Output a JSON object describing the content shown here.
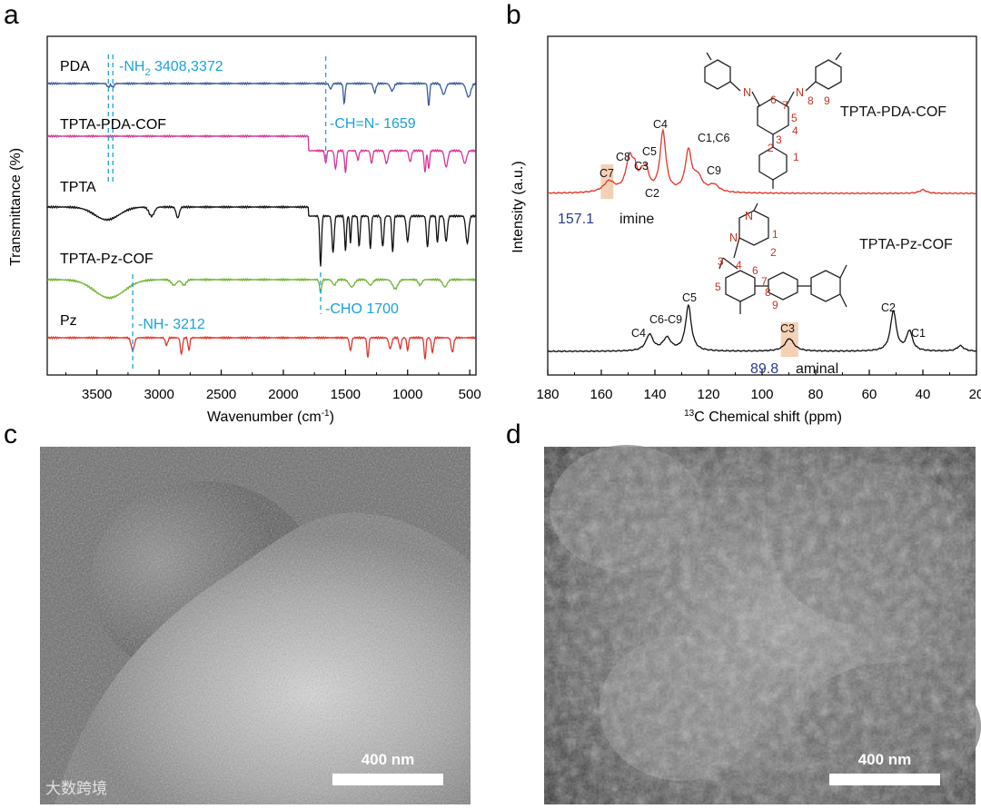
{
  "panels": {
    "a": "a",
    "b": "b",
    "c": "c",
    "d": "d"
  },
  "chart_data": [
    {
      "type": "line",
      "panel": "a",
      "xlabel": "Wavenumber (cm",
      "xlabel_sup": "-1",
      "xlabel_end": ")",
      "ylabel": "Transmittance (%)",
      "xlim": [
        3900,
        450
      ],
      "x_reversed": true,
      "xticks": [
        3500,
        3000,
        2500,
        2000,
        1500,
        1000,
        500
      ],
      "xtick_labels": [
        "3500",
        "3000",
        "2500",
        "2000",
        "1500",
        "1000",
        "500"
      ],
      "series": [
        {
          "name": "PDA",
          "color": "#3b5aa0",
          "offset": 92,
          "peaks": [
            [
              3408,
              4,
              14
            ],
            [
              3372,
              4,
              14
            ],
            [
              1620,
              6,
              14
            ],
            [
              1510,
              22,
              10
            ],
            [
              1265,
              10,
              14
            ],
            [
              1125,
              8,
              20
            ],
            [
              830,
              25,
              10
            ],
            [
              710,
              12,
              22
            ],
            [
              510,
              15,
              25
            ]
          ],
          "base_in": 0,
          "base_out": 0
        },
        {
          "name": "TPTA-PDA-COF",
          "color": "#d6369a",
          "offset": 152,
          "peaks": [
            [
              1659,
              14,
              10
            ],
            [
              1580,
              20,
              12
            ],
            [
              1500,
              24,
              10
            ],
            [
              1400,
              10,
              12
            ],
            [
              1290,
              14,
              12
            ],
            [
              1170,
              14,
              16
            ],
            [
              980,
              12,
              14
            ],
            [
              860,
              24,
              10
            ],
            [
              830,
              20,
              10
            ],
            [
              690,
              18,
              18
            ],
            [
              540,
              14,
              20
            ]
          ],
          "base_in": -2,
          "base_out": 14
        },
        {
          "name": "TPTA",
          "color": "#111111",
          "offset": 228,
          "peaks": [
            [
              3420,
              14,
              140
            ],
            [
              3060,
              10,
              30
            ],
            [
              2850,
              12,
              18
            ],
            [
              1700,
              55,
              10
            ],
            [
              1600,
              40,
              12
            ],
            [
              1500,
              38,
              10
            ],
            [
              1460,
              30,
              8
            ],
            [
              1390,
              34,
              10
            ],
            [
              1300,
              36,
              10
            ],
            [
              1200,
              34,
              12
            ],
            [
              1120,
              40,
              10
            ],
            [
              1000,
              28,
              14
            ],
            [
              840,
              34,
              12
            ],
            [
              760,
              30,
              10
            ],
            [
              690,
              28,
              14
            ],
            [
              520,
              30,
              16
            ]
          ],
          "base_in": 0,
          "base_out": 10
        },
        {
          "name": "TPTA-Pz-COF",
          "color": "#6fb533",
          "offset": 308,
          "peaks": [
            [
              3400,
              20,
              170
            ],
            [
              2880,
              6,
              30
            ],
            [
              2800,
              6,
              25
            ],
            [
              1700,
              14,
              12
            ],
            [
              1590,
              6,
              20
            ],
            [
              1450,
              8,
              30
            ],
            [
              1300,
              6,
              25
            ],
            [
              1100,
              10,
              30
            ],
            [
              900,
              6,
              20
            ],
            [
              700,
              8,
              25
            ]
          ],
          "base_in": 0,
          "base_out": 0
        },
        {
          "name": "Pz",
          "color": "#e0362b",
          "offset": 372,
          "peaks": [
            [
              3212,
              14,
              18
            ],
            [
              2940,
              8,
              14
            ],
            [
              2820,
              18,
              12
            ],
            [
              2760,
              14,
              10
            ],
            [
              1460,
              14,
              12
            ],
            [
              1320,
              22,
              10
            ],
            [
              1140,
              12,
              16
            ],
            [
              1060,
              12,
              12
            ],
            [
              1000,
              14,
              10
            ],
            [
              860,
              24,
              10
            ],
            [
              800,
              16,
              12
            ],
            [
              640,
              16,
              14
            ]
          ],
          "base_in": 0,
          "base_out": 0
        }
      ],
      "annotations": [
        {
          "id": "nh2_label",
          "text": "-NH",
          "sub": "2",
          "rest": "  3408,3372"
        },
        {
          "id": "chn_label",
          "text": "-CH=N-  1659"
        },
        {
          "id": "cho_label",
          "text": "-CHO  1700"
        },
        {
          "id": "nh_label",
          "text": "-NH-  3212"
        }
      ],
      "dashed_lines": [
        3408,
        3372,
        1659,
        1700,
        3212
      ]
    },
    {
      "type": "line",
      "panel": "b",
      "xlabel_sup": "13",
      "xlabel": "C Chemical shift (ppm)",
      "ylabel": "Intensity (a.u.)",
      "xlim": [
        180,
        20
      ],
      "x_reversed": true,
      "xticks": [
        180,
        160,
        140,
        120,
        100,
        80,
        60,
        40,
        20
      ],
      "xtick_labels": [
        "180",
        "160",
        "140",
        "120",
        "100",
        "80",
        "60",
        "40",
        "20"
      ],
      "series": [
        {
          "name": "TPTA-PDA-COF",
          "color": "#e0362b",
          "baseline": 213,
          "peaks": [
            [
              157.1,
              12,
              2.5
            ],
            [
              149.5,
              36,
              1.6
            ],
            [
              147.5,
              18,
              1.2
            ],
            [
              144.8,
              14,
              1.1
            ],
            [
              143.2,
              20,
              1.2
            ],
            [
              137,
              66,
              1.3
            ],
            [
              127.5,
              44,
              1.4
            ],
            [
              124,
              16,
              2.0
            ],
            [
              118,
              8,
              2.2
            ],
            [
              40,
              4,
              1.5
            ]
          ]
        },
        {
          "name": "TPTA-Pz-COF",
          "color": "#111111",
          "baseline": 387,
          "peaks": [
            [
              142,
              18,
              1.6
            ],
            [
              135.5,
              14,
              1.8
            ],
            [
              127.5,
              50,
              1.3
            ],
            [
              89.8,
              14,
              2.0
            ],
            [
              51,
              44,
              1.3
            ],
            [
              45,
              22,
              1.3
            ],
            [
              26,
              6,
              1.5
            ]
          ]
        }
      ],
      "peak_labels": [
        "C7",
        "C8",
        "C3",
        "C5",
        "C4",
        "C1,C6",
        "C9",
        "C2",
        "C4",
        "C6-C9",
        "C5",
        "C3",
        "C2",
        "C1"
      ],
      "highlight_values": [
        {
          "value": "157.1",
          "word": "imine"
        },
        {
          "value": "89.8",
          "word": "aminal"
        }
      ],
      "structure_labels": {
        "cof1": "TPTA-PDA-COF",
        "cof2": "TPTA-Pz-COF",
        "n": "N",
        "nums_top": [
          "6",
          "7",
          "8",
          "9",
          "5",
          "4",
          "3",
          "2",
          "1"
        ],
        "nums_bot": [
          "1",
          "2",
          "3",
          "4",
          "6",
          "7",
          "5",
          "8",
          "9"
        ]
      }
    }
  ],
  "sem": {
    "c_scale": "400 nm",
    "d_scale": "400 nm",
    "watermark": "大数跨境"
  }
}
